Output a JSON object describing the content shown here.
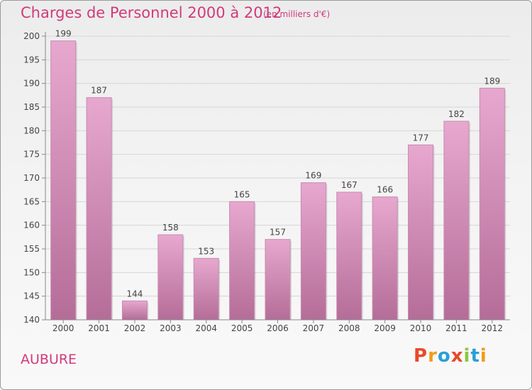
{
  "header": {
    "title": "Charges de Personnel 2000 à 2012",
    "subtitle": "(en milliers d'€)"
  },
  "footer": {
    "commune": "AUBURE",
    "logo_text": "Proxiti"
  },
  "colors": {
    "accent": "#d13a7a",
    "bar_top": "#e7a8cf",
    "bar_bottom": "#b46d98",
    "axis": "#888888",
    "logo_letters": [
      "#e8492a",
      "#f29b1a",
      "#2a9fd6",
      "#e8492a",
      "#8cc63f",
      "#2a9fd6",
      "#f29b1a"
    ]
  },
  "chart_data": {
    "type": "bar",
    "title": "Charges de Personnel 2000 à 2012",
    "subtitle": "(en milliers d'€)",
    "categories": [
      "2000",
      "2001",
      "2002",
      "2003",
      "2004",
      "2005",
      "2006",
      "2007",
      "2008",
      "2009",
      "2010",
      "2011",
      "2012"
    ],
    "values": [
      199,
      187,
      144,
      158,
      153,
      165,
      157,
      169,
      167,
      166,
      177,
      182,
      189
    ],
    "ylim": [
      140,
      200
    ],
    "yticks": [
      140,
      145,
      150,
      155,
      160,
      165,
      170,
      175,
      180,
      185,
      190,
      195,
      200
    ],
    "grid": true,
    "legend": "none"
  }
}
